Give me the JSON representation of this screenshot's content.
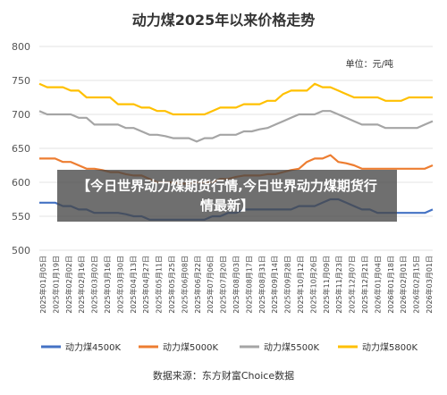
{
  "chart_data": {
    "type": "line",
    "title": "动力煤2025年以来价格走势",
    "unit_label": "单位：元/吨",
    "ylim": [
      500,
      800
    ],
    "yticks": [
      500,
      550,
      600,
      650,
      700,
      750,
      800
    ],
    "grid": "horizontal",
    "legend_position": "bottom",
    "source": "数据来源：东方财富Choice数据",
    "x_tick_labels": [
      "2025年01月05日",
      "2025年01月19日",
      "2025年02月02日",
      "2025年02月16日",
      "2025年03月02日",
      "2025年03月16日",
      "2025年03月30日",
      "2025年04月13日",
      "2025年04月27日",
      "2025年05月11日",
      "2025年05月25日",
      "2025年06月08日",
      "2025年06月22日",
      "2025年07月06日",
      "2025年07月20日",
      "2025年08月03日",
      "2025年08月17日",
      "2025年08月31日",
      "2025年09月14日",
      "2025年09月28日",
      "2025年10月12日",
      "2025年10月26日",
      "2025年11月09日",
      "2025年11月23日",
      "2025年12月07日",
      "2025年12月21日",
      "2026年01月04日",
      "2026年01月18日",
      "2026年02月01日",
      "2026年02月15日",
      "2026年03月01日"
    ],
    "x_labels_display": [
      "2025年01月05日",
      "2025年01月19日",
      "2025年02月02日",
      "2025年02月16日",
      "2025年03月02日",
      "2025年03月16日",
      "2025年03月30日",
      "2025年04月13日",
      "2025年04月27日",
      "2025年05月11日",
      "2025年05月25日",
      "2025年06月08日",
      "2025年06月22日",
      "2025年07月06日",
      "2025年07月20日",
      "2025年08月03日",
      "2025年08月17日",
      "2025年08月31日",
      "2025年09月14日",
      "2025年09月28日",
      "2025年10月12日",
      "2025年10月26日",
      "2025年11月09日",
      "2025年11月23日",
      "2025年12月07日",
      "2025年12月21日",
      "2026年01月04日",
      "2026年01月18日",
      "2026年02月01日",
      "2026年02月15日",
      "2026年03月01日"
    ],
    "series": [
      {
        "name": "动力煤4500K",
        "color": "#4472C4",
        "values": [
          570,
          570,
          570,
          565,
          565,
          560,
          560,
          555,
          555,
          555,
          555,
          553,
          550,
          550,
          545,
          545,
          545,
          545,
          545,
          545,
          545,
          545,
          550,
          550,
          555,
          555,
          560,
          560,
          560,
          560,
          560,
          560,
          560,
          565,
          565,
          565,
          570,
          575,
          575,
          570,
          565,
          560,
          560,
          555,
          555,
          555,
          555,
          555,
          555,
          555,
          560
        ]
      },
      {
        "name": "动力煤5000K",
        "color": "#ED7D31",
        "values": [
          635,
          635,
          635,
          630,
          630,
          625,
          620,
          620,
          618,
          615,
          615,
          612,
          610,
          610,
          605,
          600,
          600,
          600,
          598,
          598,
          600,
          600,
          600,
          605,
          605,
          608,
          610,
          610,
          610,
          612,
          612,
          615,
          618,
          620,
          630,
          635,
          635,
          640,
          630,
          628,
          625,
          620,
          620,
          620,
          620,
          620,
          620,
          620,
          620,
          620,
          625
        ]
      },
      {
        "name": "动力煤5500K",
        "color": "#A5A5A5",
        "values": [
          705,
          700,
          700,
          700,
          700,
          695,
          695,
          685,
          685,
          685,
          685,
          680,
          680,
          675,
          670,
          670,
          668,
          665,
          665,
          665,
          660,
          665,
          665,
          670,
          670,
          670,
          675,
          675,
          678,
          680,
          685,
          690,
          695,
          700,
          700,
          700,
          705,
          705,
          700,
          695,
          690,
          685,
          685,
          685,
          680,
          680,
          680,
          680,
          680,
          685,
          690
        ]
      },
      {
        "name": "动力煤5800K",
        "color": "#FFC000",
        "values": [
          745,
          740,
          740,
          740,
          735,
          735,
          725,
          725,
          725,
          725,
          715,
          715,
          715,
          710,
          710,
          705,
          705,
          700,
          700,
          700,
          700,
          700,
          705,
          710,
          710,
          710,
          715,
          715,
          715,
          720,
          720,
          730,
          735,
          735,
          735,
          745,
          740,
          740,
          735,
          730,
          725,
          725,
          725,
          725,
          720,
          720,
          720,
          725,
          725,
          725,
          725
        ]
      }
    ]
  },
  "watermark": "东方财富",
  "banner": {
    "text": "【今日世界动力煤期货行情,今日世界动力煤期货行情最新】"
  }
}
